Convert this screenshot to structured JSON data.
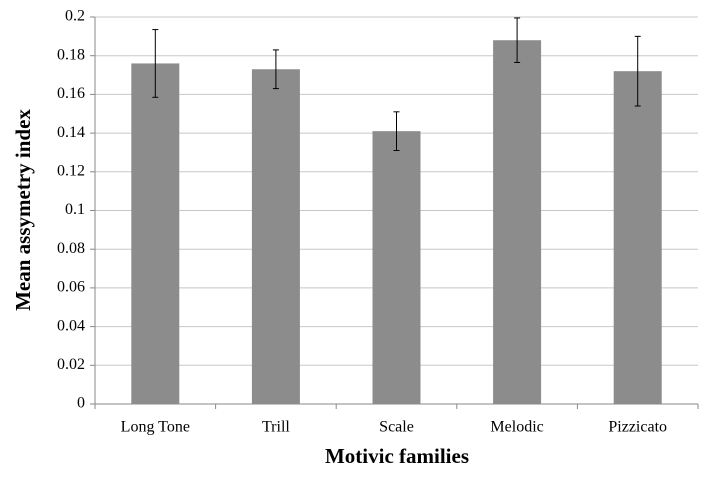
{
  "chart_data": {
    "type": "bar",
    "x_label": "Motivic families",
    "y_label": "Mean assymetry index",
    "categories": [
      "Long Tone",
      "Trill",
      "Scale",
      "Melodic",
      "Pizzicato"
    ],
    "values": [
      0.176,
      0.173,
      0.141,
      0.188,
      0.172
    ],
    "errors": [
      0.0175,
      0.01,
      0.01,
      0.0115,
      0.018
    ],
    "color": "#8c8c8c",
    "ylim": [
      0,
      0.2
    ],
    "yticks": [
      0,
      0.02,
      0.04,
      0.06,
      0.08,
      0.1,
      0.12,
      0.14,
      0.16,
      0.18,
      0.2
    ],
    "grid": true
  }
}
